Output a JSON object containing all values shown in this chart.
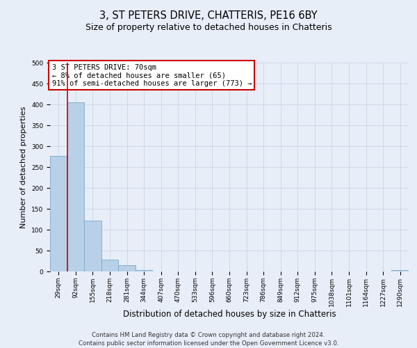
{
  "title": "3, ST PETERS DRIVE, CHATTERIS, PE16 6BY",
  "subtitle": "Size of property relative to detached houses in Chatteris",
  "xlabel": "Distribution of detached houses by size in Chatteris",
  "ylabel": "Number of detached properties",
  "bar_labels": [
    "29sqm",
    "92sqm",
    "155sqm",
    "218sqm",
    "281sqm",
    "344sqm",
    "407sqm",
    "470sqm",
    "533sqm",
    "596sqm",
    "660sqm",
    "723sqm",
    "786sqm",
    "849sqm",
    "912sqm",
    "975sqm",
    "1038sqm",
    "1101sqm",
    "1164sqm",
    "1227sqm",
    "1290sqm"
  ],
  "bar_values": [
    277,
    405,
    122,
    29,
    15,
    4,
    0,
    0,
    0,
    0,
    0,
    0,
    0,
    0,
    0,
    0,
    0,
    0,
    0,
    0,
    3
  ],
  "bar_color": "#b8d0e8",
  "bar_edge_color": "#7aaac8",
  "annotation_line1": "3 ST PETERS DRIVE: 70sqm",
  "annotation_line2": "← 8% of detached houses are smaller (65)",
  "annotation_line3": "91% of semi-detached houses are larger (773) →",
  "annotation_box_color": "#ffffff",
  "annotation_box_edge_color": "#cc0000",
  "red_line_x": 0.5,
  "ylim": [
    0,
    500
  ],
  "yticks": [
    0,
    50,
    100,
    150,
    200,
    250,
    300,
    350,
    400,
    450,
    500
  ],
  "grid_color": "#d0d8e8",
  "bg_color": "#e8eef8",
  "footer_line1": "Contains HM Land Registry data © Crown copyright and database right 2024.",
  "footer_line2": "Contains public sector information licensed under the Open Government Licence v3.0."
}
